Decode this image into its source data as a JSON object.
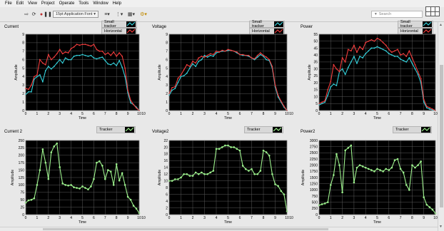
{
  "menu": [
    "File",
    "Edit",
    "View",
    "Project",
    "Operate",
    "Tools",
    "Window",
    "Help"
  ],
  "toolbar": {
    "font": "15pt Application Font",
    "search_placeholder": "Search",
    "buttons": [
      "run-arrow-icon",
      "run-continuous-icon",
      "abort-icon",
      "pause-icon",
      "align-icon",
      "distribute-icon",
      "resize-icon",
      "reorder-icon"
    ]
  },
  "colors": {
    "cyan": "#35d2dc",
    "red": "#f03c3c",
    "green": "#9cf08c",
    "plotbg": "#000000",
    "panelbg": "#e8e8e8"
  },
  "chart_data": [
    {
      "type": "line",
      "title": "Current",
      "xlabel": "Time",
      "ylabel": "Amplitude",
      "xlim": [
        0,
        10
      ],
      "ylim": [
        0,
        9
      ],
      "yticks": [
        0,
        1,
        2,
        3,
        4,
        5,
        6,
        7,
        8,
        9
      ],
      "xticklabels": [
        "0",
        "1",
        "2",
        "3",
        "4",
        "5",
        "6",
        "7",
        "8",
        "9",
        "10",
        "10"
      ],
      "legend": "top-right",
      "grid": true,
      "x": [
        0,
        0.25,
        0.5,
        0.75,
        1,
        1.25,
        1.5,
        1.75,
        2,
        2.25,
        2.5,
        2.75,
        3,
        3.25,
        3.5,
        3.75,
        4,
        4.25,
        4.5,
        4.75,
        5,
        5.25,
        5.5,
        5.75,
        6,
        6.25,
        6.5,
        6.75,
        7,
        7.25,
        7.5,
        7.75,
        8,
        8.25,
        8.5,
        8.75,
        9,
        9.25,
        9.5,
        9.75,
        10
      ],
      "series": [
        {
          "name": "Small tracker",
          "color": "#35d2dc",
          "values": [
            1.9,
            2.2,
            2.2,
            3.7,
            4.0,
            4.2,
            3.4,
            4.7,
            5.2,
            4.9,
            5.2,
            5.6,
            6.0,
            5.6,
            6.2,
            6.0,
            6.0,
            6.4,
            6.5,
            6.5,
            6.6,
            6.5,
            6.4,
            6.5,
            6.2,
            6.1,
            6.2,
            6.3,
            5.9,
            5.5,
            5.4,
            5.6,
            5.3,
            5.9,
            5.1,
            4.0,
            2.1,
            0.9,
            0.7,
            0.4,
            0.0
          ]
        },
        {
          "name": "Horizontal",
          "color": "#f03c3c",
          "values": [
            2.6,
            2.5,
            3.0,
            4.0,
            4.2,
            6.0,
            5.6,
            5.4,
            6.6,
            6.0,
            6.3,
            6.7,
            7.2,
            6.7,
            6.9,
            6.8,
            7.3,
            7.5,
            7.8,
            7.7,
            7.8,
            7.8,
            7.7,
            7.6,
            7.8,
            7.2,
            7.0,
            7.0,
            6.6,
            6.8,
            6.5,
            6.9,
            6.4,
            6.8,
            6.4,
            5.0,
            2.4,
            1.2,
            0.7,
            0.3,
            0.0
          ]
        }
      ]
    },
    {
      "type": "line",
      "title": "Voltage",
      "xlabel": "Time",
      "ylabel": "Amplitude",
      "xlim": [
        0,
        10
      ],
      "ylim": [
        0,
        9
      ],
      "yticks": [
        0,
        1,
        2,
        3,
        4,
        5,
        6,
        7,
        8,
        9
      ],
      "xticklabels": [
        "0",
        "1",
        "2",
        "3",
        "4",
        "5",
        "6",
        "7",
        "8",
        "9",
        "10",
        "10"
      ],
      "legend": "top-right",
      "grid": true,
      "x": [
        0,
        0.25,
        0.5,
        0.75,
        1,
        1.25,
        1.5,
        1.75,
        2,
        2.25,
        2.5,
        2.75,
        3,
        3.25,
        3.5,
        3.75,
        4,
        4.25,
        4.5,
        4.75,
        5,
        5.25,
        5.5,
        5.75,
        6,
        6.25,
        6.5,
        6.75,
        7,
        7.25,
        7.5,
        7.75,
        8,
        8.25,
        8.5,
        8.75,
        9,
        9.25,
        9.5,
        9.75,
        10
      ],
      "series": [
        {
          "name": "Small tracker",
          "color": "#35d2dc",
          "values": [
            1.8,
            2.4,
            2.6,
            3.3,
            4.0,
            4.1,
            4.4,
            5.0,
            5.5,
            5.2,
            5.8,
            6.0,
            6.5,
            6.3,
            6.5,
            6.4,
            6.8,
            6.9,
            7.0,
            7.0,
            7.1,
            7.1,
            7.0,
            6.8,
            6.6,
            6.5,
            6.5,
            6.4,
            6.2,
            6.0,
            6.3,
            6.6,
            6.4,
            6.0,
            5.9,
            5.0,
            2.8,
            1.6,
            1.0,
            0.4,
            0.0
          ]
        },
        {
          "name": "Horizontal",
          "color": "#f03c3c",
          "values": [
            2.0,
            2.7,
            2.8,
            3.8,
            4.2,
            4.8,
            5.4,
            5.2,
            5.8,
            5.6,
            6.2,
            6.4,
            6.3,
            6.5,
            6.7,
            6.6,
            7.0,
            6.9,
            7.1,
            7.0,
            7.2,
            7.1,
            7.0,
            6.9,
            6.6,
            6.6,
            6.5,
            6.5,
            6.2,
            6.1,
            6.5,
            6.8,
            6.5,
            6.3,
            6.0,
            5.2,
            3.0,
            1.8,
            1.1,
            0.5,
            0.0
          ]
        }
      ]
    },
    {
      "type": "line",
      "title": "Power",
      "xlabel": "Time",
      "ylabel": "Amplitude",
      "xlim": [
        0,
        10
      ],
      "ylim": [
        0,
        55
      ],
      "yticks": [
        0,
        5,
        10,
        15,
        20,
        25,
        30,
        35,
        40,
        45,
        50,
        55
      ],
      "xticklabels": [
        "0",
        "1",
        "2",
        "3",
        "4",
        "5",
        "6",
        "7",
        "8",
        "9",
        "10",
        "10"
      ],
      "legend": "top-right",
      "grid": true,
      "x": [
        0,
        0.25,
        0.5,
        0.75,
        1,
        1.25,
        1.5,
        1.75,
        2,
        2.25,
        2.5,
        2.75,
        3,
        3.25,
        3.5,
        3.75,
        4,
        4.25,
        4.5,
        4.75,
        5,
        5.25,
        5.5,
        5.75,
        6,
        6.25,
        6.5,
        6.75,
        7,
        7.25,
        7.5,
        7.75,
        8,
        8.25,
        8.5,
        8.75,
        9,
        9.25,
        9.5,
        9.75,
        10
      ],
      "series": [
        {
          "name": "Small tracker",
          "color": "#35d2dc",
          "values": [
            4,
            5,
            6,
            11,
            17,
            19,
            18,
            28,
            30,
            26,
            31,
            35,
            39,
            34,
            39,
            38,
            41,
            43,
            45,
            45,
            46,
            45,
            44,
            43,
            41,
            40,
            39,
            39,
            37,
            36,
            35,
            38,
            34,
            30,
            26,
            20,
            6,
            2,
            1,
            0.5,
            0
          ]
        },
        {
          "name": "Horizontal",
          "color": "#f03c3c",
          "values": [
            5,
            6,
            7,
            15,
            21,
            33,
            30,
            28,
            38,
            35,
            44,
            43,
            47,
            42,
            46,
            44,
            49,
            50,
            51,
            50,
            52,
            51,
            49,
            47,
            44,
            42,
            43,
            44,
            40,
            41,
            39,
            43,
            38,
            33,
            28,
            23,
            8,
            3,
            2,
            1,
            0
          ]
        }
      ]
    },
    {
      "type": "line",
      "title": "Current 2",
      "xlabel": "Time",
      "ylabel": "Amplitude",
      "xlim": [
        0,
        10
      ],
      "ylim": [
        0,
        250
      ],
      "yticks": [
        0,
        25,
        50,
        75,
        100,
        125,
        150,
        175,
        200,
        225,
        250
      ],
      "xticklabels": [
        "0",
        "1",
        "2",
        "3",
        "4",
        "5",
        "6",
        "7",
        "8",
        "9",
        "10",
        "10"
      ],
      "legend": "top-right",
      "grid": true,
      "x": [
        0,
        0.25,
        0.5,
        0.75,
        1,
        1.25,
        1.5,
        1.75,
        2,
        2.25,
        2.5,
        2.75,
        3,
        3.25,
        3.5,
        3.75,
        4,
        4.25,
        4.5,
        4.75,
        5,
        5.25,
        5.5,
        5.75,
        6,
        6.25,
        6.5,
        6.75,
        7,
        7.25,
        7.5,
        7.75,
        8,
        8.25,
        8.5,
        8.75,
        9,
        9.25,
        9.5,
        9.75,
        10
      ],
      "series": [
        {
          "name": "Tracker",
          "color": "#9cf08c",
          "values": [
            40,
            48,
            50,
            55,
            100,
            150,
            220,
            175,
            120,
            210,
            230,
            240,
            160,
            105,
            100,
            98,
            100,
            92,
            90,
            88,
            95,
            90,
            85,
            95,
            120,
            175,
            180,
            165,
            120,
            150,
            145,
            100,
            170,
            115,
            140,
            100,
            60,
            50,
            30,
            20,
            5
          ]
        }
      ]
    },
    {
      "type": "line",
      "title": "Voltage2",
      "xlabel": "Time",
      "ylabel": "Amplitude",
      "xlim": [
        0,
        10
      ],
      "ylim": [
        0,
        22
      ],
      "yticks": [
        0,
        2,
        4,
        6,
        8,
        10,
        12,
        14,
        16,
        18,
        20,
        22
      ],
      "xticklabels": [
        "0",
        "1",
        "2",
        "3",
        "4",
        "5",
        "6",
        "7",
        "8",
        "9",
        "10",
        "10"
      ],
      "legend": "top-right",
      "grid": true,
      "x": [
        0,
        0.25,
        0.5,
        0.75,
        1,
        1.25,
        1.5,
        1.75,
        2,
        2.25,
        2.5,
        2.75,
        3,
        3.25,
        3.5,
        3.75,
        4,
        4.25,
        4.5,
        4.75,
        5,
        5.25,
        5.5,
        5.75,
        6,
        6.25,
        6.5,
        6.75,
        7,
        7.25,
        7.5,
        7.75,
        8,
        8.25,
        8.5,
        8.75,
        9,
        9.25,
        9.5,
        9.75,
        10
      ],
      "series": [
        {
          "name": "Tracker",
          "color": "#9cf08c",
          "values": [
            10,
            10,
            10.5,
            10.5,
            11,
            12,
            12,
            11.5,
            11.5,
            12.5,
            12,
            12.5,
            12,
            12,
            12.5,
            13,
            19.5,
            19.5,
            20,
            20.5,
            20.5,
            20,
            20,
            19.5,
            19,
            14.5,
            13.5,
            13,
            13.5,
            12,
            12,
            13,
            19,
            18.5,
            17.5,
            12,
            9,
            8.5,
            7,
            6,
            1
          ]
        }
      ]
    },
    {
      "type": "line",
      "title": "Power2",
      "xlabel": "Time",
      "ylabel": "Amplitude",
      "xlim": [
        0,
        10
      ],
      "ylim": [
        0,
        3000
      ],
      "yticks": [
        0,
        250,
        500,
        750,
        1000,
        1250,
        1500,
        1750,
        2000,
        2250,
        2500,
        2750,
        3000
      ],
      "xticklabels": [
        "0",
        "1",
        "2",
        "3",
        "4",
        "5",
        "6",
        "7",
        "8",
        "9",
        "10",
        "10"
      ],
      "legend": "top-right",
      "grid": true,
      "x": [
        0,
        0.25,
        0.5,
        0.75,
        1,
        1.25,
        1.5,
        1.75,
        2,
        2.25,
        2.5,
        2.75,
        3,
        3.25,
        3.5,
        3.75,
        4,
        4.25,
        4.5,
        4.75,
        5,
        5.25,
        5.5,
        5.75,
        6,
        6.25,
        6.5,
        6.75,
        7,
        7.25,
        7.5,
        7.75,
        8,
        8.25,
        8.5,
        8.75,
        9,
        9.25,
        9.5,
        9.75,
        10
      ],
      "series": [
        {
          "name": "Tracker",
          "color": "#9cf08c",
          "values": [
            380,
            420,
            450,
            500,
            1200,
            1600,
            2450,
            2000,
            900,
            2600,
            2700,
            2800,
            1300,
            1900,
            2000,
            1950,
            1900,
            1850,
            1800,
            1750,
            1850,
            1800,
            1750,
            1850,
            1800,
            1900,
            2200,
            2250,
            1850,
            1700,
            1200,
            1000,
            2000,
            1900,
            2000,
            2150,
            700,
            400,
            300,
            200,
            50
          ]
        }
      ]
    }
  ]
}
